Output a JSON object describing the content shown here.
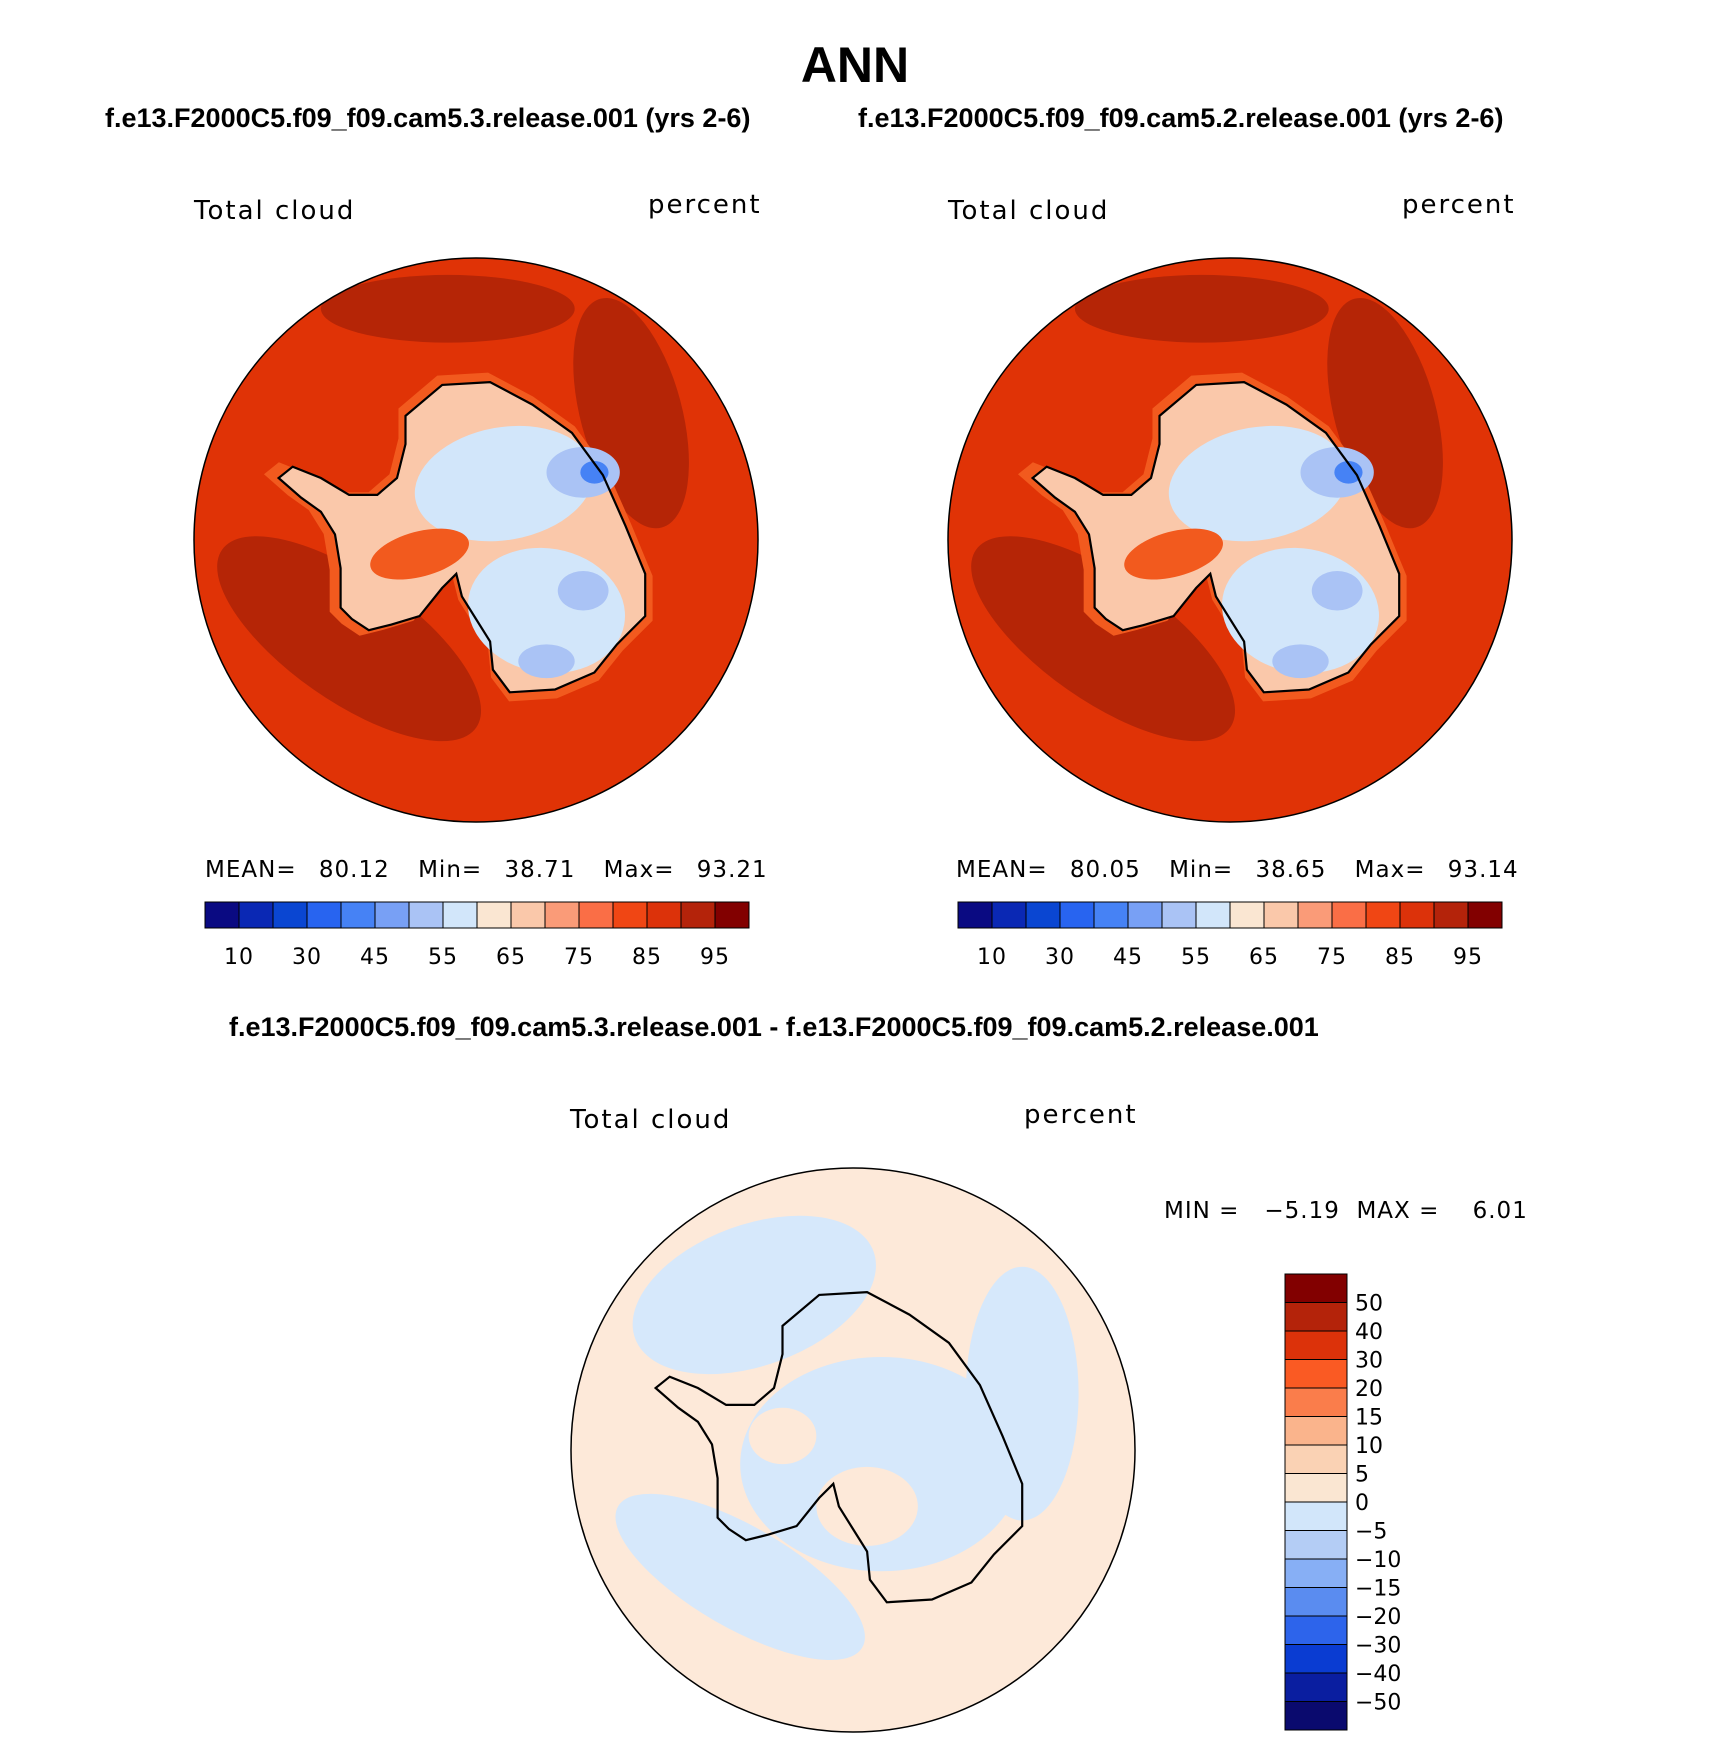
{
  "title": "ANN",
  "panels": [
    {
      "id": "case",
      "header": "f.e13.F2000C5.f09_f09.cam5.3.release.001 (yrs 2-6)",
      "field": "Total cloud",
      "units": "percent",
      "stats": {
        "mean_label": "MEAN=",
        "mean": "80.12",
        "min_label": "Min=",
        "min": "38.71",
        "max_label": "Max=",
        "max": "93.21"
      }
    },
    {
      "id": "control",
      "header": "f.e13.F2000C5.f09_f09.cam5.2.release.001 (yrs 2-6)",
      "field": "Total cloud",
      "units": "percent",
      "stats": {
        "mean_label": "MEAN=",
        "mean": "80.05",
        "min_label": "Min=",
        "min": "38.65",
        "max_label": "Max=",
        "max": "93.14"
      }
    }
  ],
  "diff_panel": {
    "header": "f.e13.F2000C5.f09_f09.cam5.3.release.001 - f.e13.F2000C5.f09_f09.cam5.2.release.001",
    "field": "Total cloud",
    "units": "percent",
    "minmax_text": "MIN =   −5.19  MAX =    6.01"
  },
  "chart_data": [
    {
      "type": "heatmap",
      "projection": "south polar stereographic",
      "title": "Total cloud",
      "units": "percent",
      "stats": {
        "mean": 80.12,
        "min": 38.71,
        "max": 93.21
      },
      "colorbar": {
        "orientation": "horizontal",
        "tick_labels": [
          "10",
          "30",
          "45",
          "55",
          "65",
          "75",
          "85",
          "95"
        ],
        "colors": [
          "#0a0a82",
          "#0a28b4",
          "#0a46d2",
          "#2864f0",
          "#4682f5",
          "#78a0f5",
          "#aac3f5",
          "#d2e6fa",
          "#fae6d2",
          "#fac8aa",
          "#fa9b78",
          "#fa6e46",
          "#f04614",
          "#dc320a",
          "#b4230a",
          "#820000"
        ]
      }
    },
    {
      "type": "heatmap",
      "projection": "south polar stereographic",
      "title": "Total cloud",
      "units": "percent",
      "stats": {
        "mean": 80.05,
        "min": 38.65,
        "max": 93.14
      },
      "colorbar": {
        "orientation": "horizontal",
        "tick_labels": [
          "10",
          "30",
          "45",
          "55",
          "65",
          "75",
          "85",
          "95"
        ],
        "colors": [
          "#0a0a82",
          "#0a28b4",
          "#0a46d2",
          "#2864f0",
          "#4682f5",
          "#78a0f5",
          "#aac3f5",
          "#d2e6fa",
          "#fae6d2",
          "#fac8aa",
          "#fa9b78",
          "#fa6e46",
          "#f04614",
          "#dc320a",
          "#b4230a",
          "#820000"
        ]
      }
    },
    {
      "type": "heatmap",
      "projection": "south polar stereographic",
      "title": "Total cloud",
      "units": "percent",
      "stats": {
        "min": -5.19,
        "max": 6.01
      },
      "colorbar": {
        "orientation": "vertical",
        "tick_labels": [
          "50",
          "40",
          "30",
          "20",
          "15",
          "10",
          "5",
          "0",
          "−5",
          "−10",
          "−15",
          "−20",
          "−30",
          "−40",
          "−50"
        ],
        "colors": [
          "#820000",
          "#b4230a",
          "#dc320a",
          "#fa5a23",
          "#fa7d4b",
          "#fab48c",
          "#fad2b4",
          "#fae6d2",
          "#d2e6fa",
          "#b4cdf5",
          "#87aff5",
          "#5a8cf0",
          "#2d64eb",
          "#0a3cd2",
          "#0a1ea0",
          "#0a0a6e"
        ]
      }
    }
  ],
  "colors": {
    "ocean_high": "#e03306",
    "ocean_higher": "#b52506",
    "coast_mid": "#f25a1e",
    "coast_low": "#fac8aa",
    "ice_light": "#d2e6fa",
    "ice_mid": "#aac3f5",
    "ice_low": "#4682f5",
    "diff_pos": "#fde9d9",
    "diff_neg": "#d6e8fb"
  }
}
